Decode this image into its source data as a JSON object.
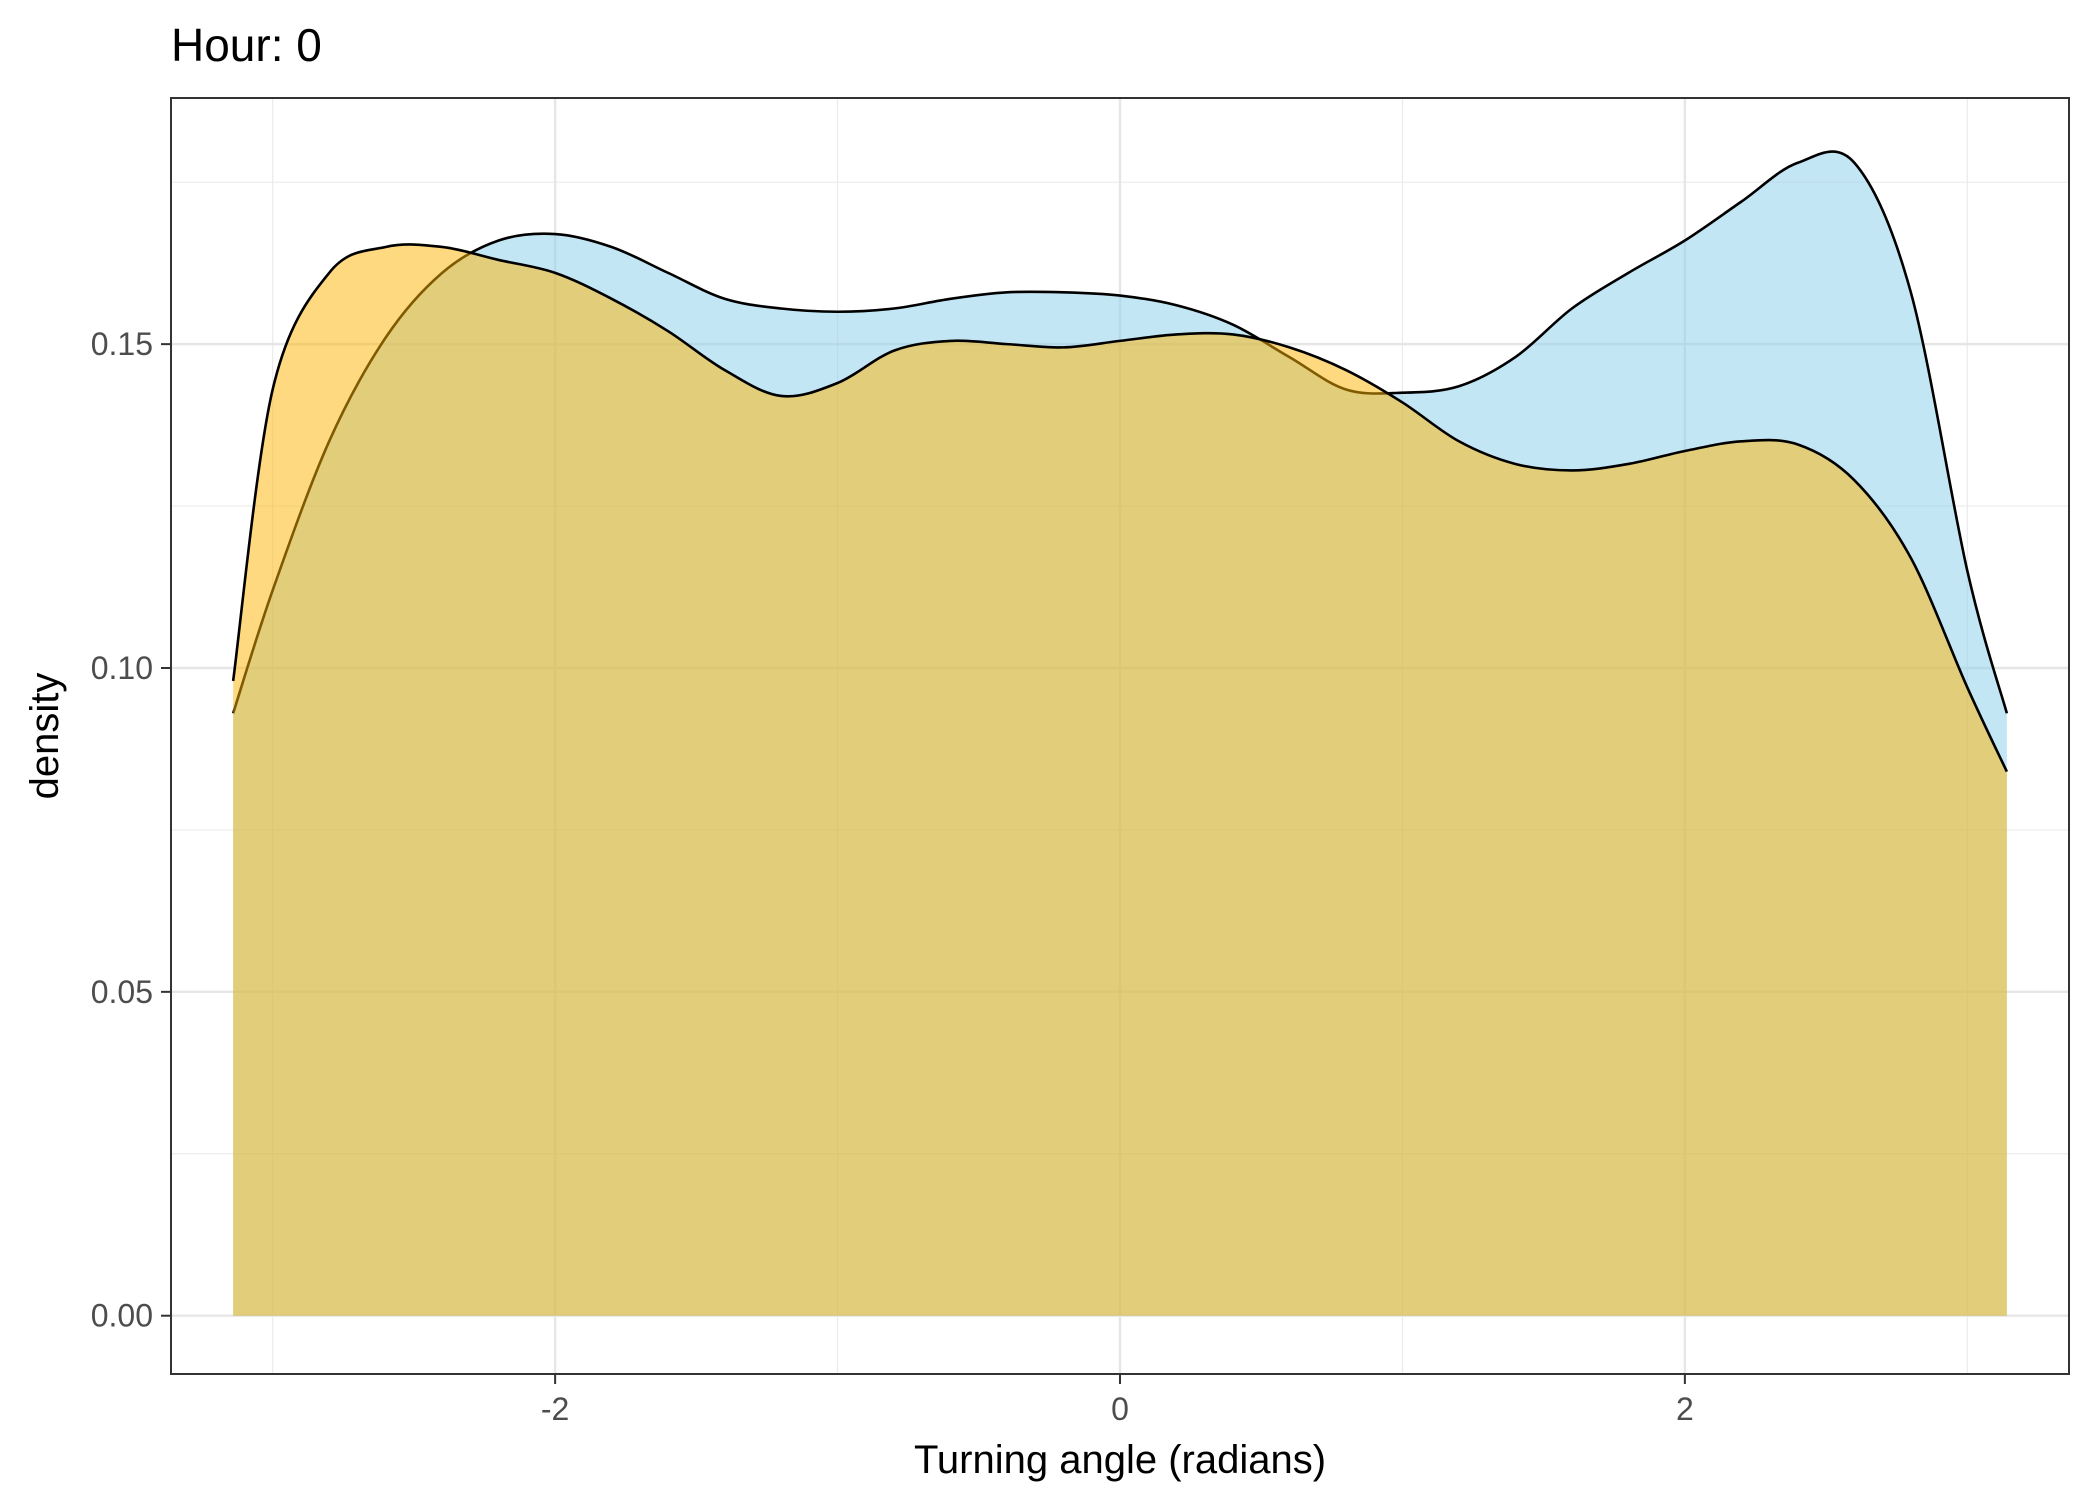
{
  "chart_data": {
    "type": "area",
    "title": "Hour: 0",
    "xlabel": "Turning angle (radians)",
    "ylabel": "density",
    "xlim": [
      -3.36,
      3.36
    ],
    "ylim": [
      -0.009,
      0.188
    ],
    "x_ticks": [
      -2,
      0,
      2
    ],
    "x_tick_labels": [
      "-2",
      "0",
      "2"
    ],
    "y_ticks": [
      0.0,
      0.05,
      0.1,
      0.15
    ],
    "y_tick_labels": [
      "0.00",
      "0.05",
      "0.10",
      "0.15"
    ],
    "grid": true,
    "series": [
      {
        "color": "#87ceeb",
        "x": [
          -3.14,
          -3.0,
          -2.8,
          -2.6,
          -2.4,
          -2.2,
          -2.0,
          -1.8,
          -1.6,
          -1.4,
          -1.2,
          -1.0,
          -0.8,
          -0.6,
          -0.4,
          -0.2,
          0.0,
          0.2,
          0.4,
          0.6,
          0.8,
          1.0,
          1.2,
          1.4,
          1.6,
          1.8,
          2.0,
          2.2,
          2.4,
          2.6,
          2.8,
          3.0,
          3.14
        ],
        "y": [
          0.093,
          0.112,
          0.135,
          0.151,
          0.161,
          0.166,
          0.167,
          0.165,
          0.161,
          0.157,
          0.1555,
          0.155,
          0.1555,
          0.157,
          0.158,
          0.158,
          0.1575,
          0.156,
          0.153,
          0.148,
          0.143,
          0.1425,
          0.1435,
          0.148,
          0.1555,
          0.161,
          0.166,
          0.172,
          0.178,
          0.178,
          0.158,
          0.115,
          0.093
        ]
      },
      {
        "color": "#ffb300",
        "x": [
          -3.14,
          -3.0,
          -2.8,
          -2.6,
          -2.4,
          -2.2,
          -2.0,
          -1.8,
          -1.6,
          -1.4,
          -1.2,
          -1.0,
          -0.8,
          -0.6,
          -0.4,
          -0.2,
          0.0,
          0.2,
          0.4,
          0.6,
          0.8,
          1.0,
          1.2,
          1.4,
          1.6,
          1.8,
          2.0,
          2.2,
          2.4,
          2.6,
          2.8,
          3.0,
          3.14
        ],
        "y": [
          0.098,
          0.143,
          0.161,
          0.165,
          0.165,
          0.163,
          0.161,
          0.157,
          0.152,
          0.146,
          0.142,
          0.144,
          0.149,
          0.1505,
          0.15,
          0.1495,
          0.1505,
          0.1515,
          0.1515,
          0.1495,
          0.146,
          0.141,
          0.135,
          0.1315,
          0.1305,
          0.1315,
          0.1335,
          0.135,
          0.1345,
          0.129,
          0.117,
          0.097,
          0.084
        ]
      }
    ]
  }
}
